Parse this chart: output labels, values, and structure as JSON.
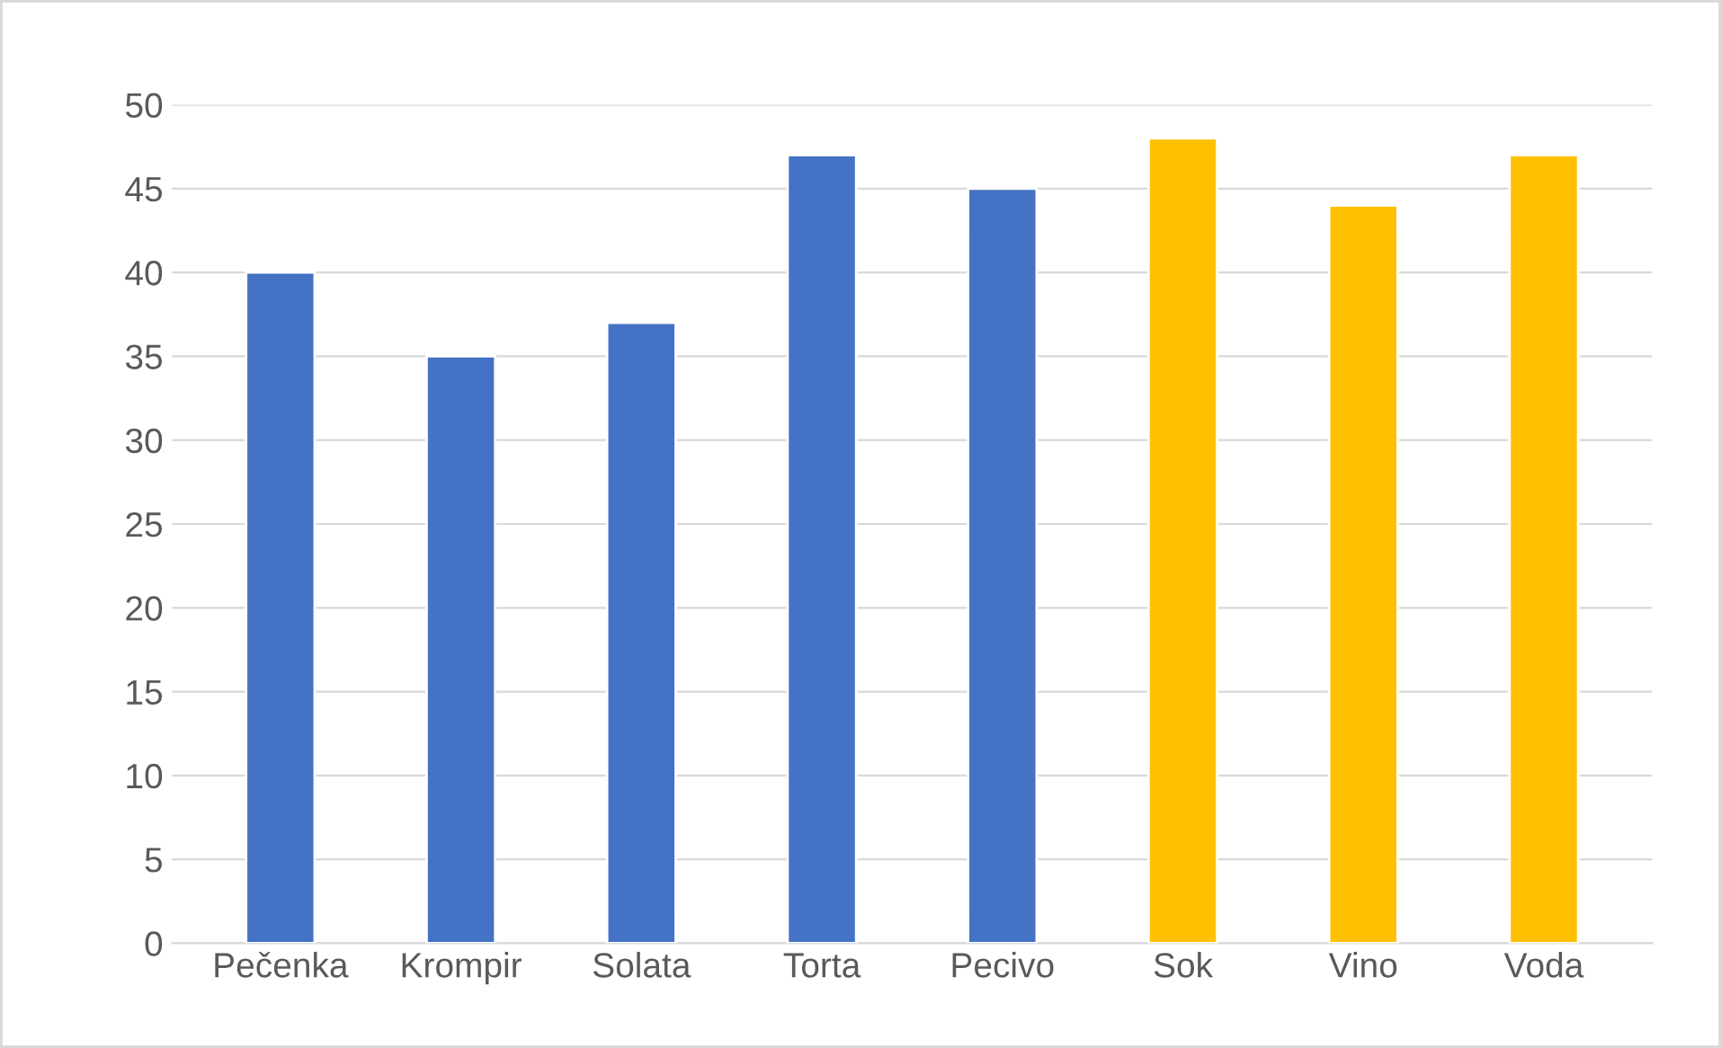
{
  "chart_data": {
    "type": "bar",
    "categories": [
      "Pečenka",
      "Krompir",
      "Solata",
      "Torta",
      "Pecivo",
      "Sok",
      "Vino",
      "Voda"
    ],
    "values": [
      40,
      35,
      37,
      47,
      45,
      48,
      44,
      47
    ],
    "colors": [
      "#4472c4",
      "#4472c4",
      "#4472c4",
      "#4472c4",
      "#4472c4",
      "#ffc000",
      "#ffc000",
      "#ffc000"
    ],
    "ylim": [
      0,
      50
    ],
    "yticks": [
      0,
      5,
      10,
      15,
      20,
      25,
      30,
      35,
      40,
      45,
      50
    ],
    "grid": "y"
  }
}
